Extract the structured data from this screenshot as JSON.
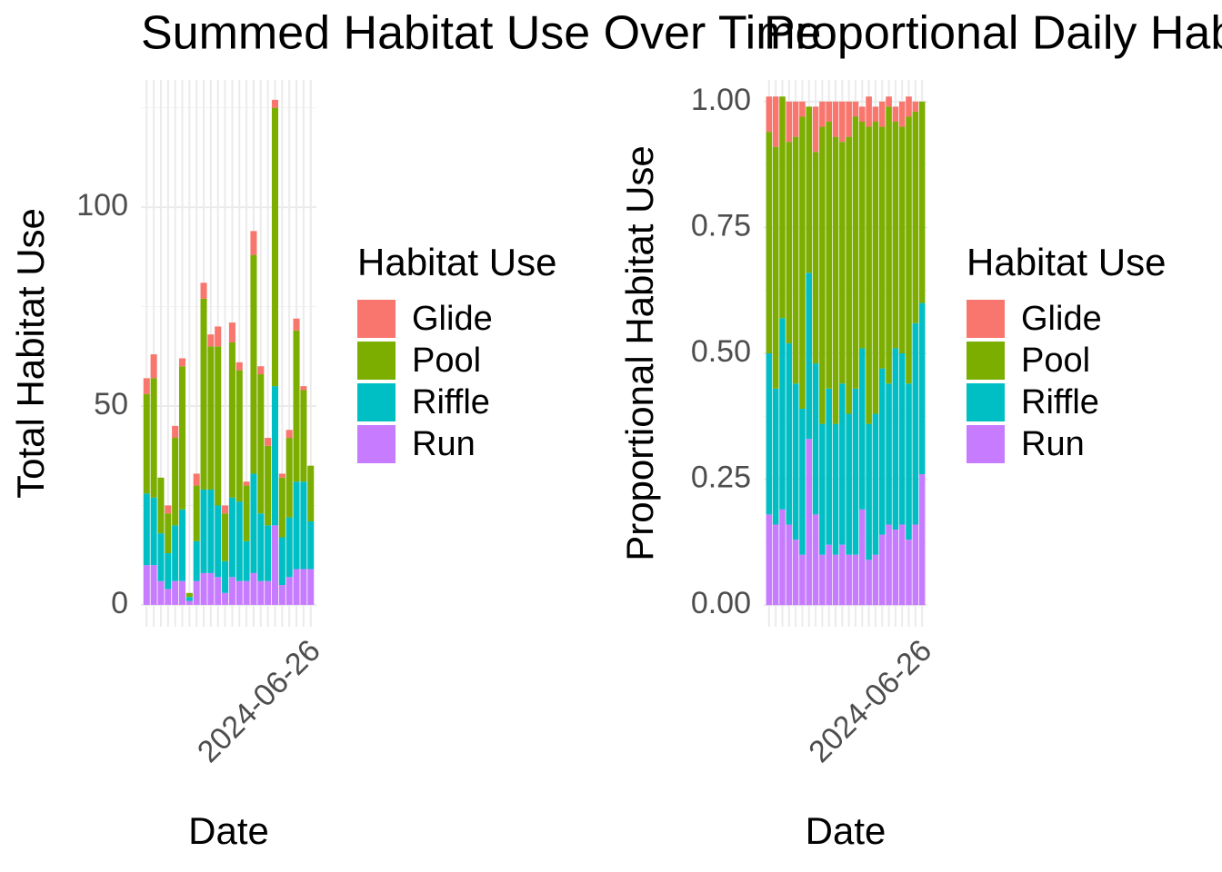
{
  "chart_data": [
    {
      "type": "stacked_bar",
      "title": "Summed Habitat Use Over Time",
      "x_label": "Date",
      "y_label": "Total Habitat Use",
      "legend_title": "Habitat Use",
      "categories": [
        null,
        null,
        null,
        null,
        null,
        null,
        null,
        null,
        null,
        null,
        null,
        null,
        null,
        null,
        null,
        null,
        null,
        null,
        null,
        null,
        null,
        null,
        null,
        "2024-06-26"
      ],
      "series": [
        {
          "name": "Glide",
          "color": "#F8766D",
          "values": [
            4,
            6,
            0,
            2,
            3,
            2,
            0,
            3,
            4,
            3,
            5,
            2,
            5,
            2,
            1,
            6,
            2,
            2,
            2,
            1,
            2,
            3,
            1,
            0
          ]
        },
        {
          "name": "Pool",
          "color": "#7CAE00",
          "values": [
            25,
            30,
            14,
            10,
            22,
            36,
            1,
            14,
            48,
            36,
            40,
            12,
            39,
            33,
            14,
            55,
            35,
            20,
            70,
            15,
            20,
            38,
            23,
            14
          ]
        },
        {
          "name": "Riffle",
          "color": "#00BFC4",
          "values": [
            18,
            17,
            12,
            9,
            14,
            18,
            1,
            10,
            21,
            21,
            18,
            8,
            20,
            20,
            10,
            25,
            17,
            14,
            35,
            12,
            15,
            22,
            22,
            12
          ]
        },
        {
          "name": "Run",
          "color": "#C77CFF",
          "values": [
            10,
            10,
            6,
            4,
            6,
            6,
            1,
            6,
            8,
            8,
            7,
            3,
            7,
            6,
            6,
            8,
            6,
            6,
            20,
            5,
            7,
            9,
            9,
            9
          ]
        }
      ],
      "ylim": [
        -5.5,
        132
      ],
      "yticks": [
        0,
        50,
        100
      ],
      "minor_yticks": [
        25,
        75,
        125
      ],
      "grid": true
    },
    {
      "type": "stacked_bar",
      "title": "Proportional Daily Habitat Use",
      "x_label": "Date",
      "y_label": "Proportional Habitat Use",
      "legend_title": "Habitat Use",
      "categories": [
        null,
        null,
        null,
        null,
        null,
        null,
        null,
        null,
        null,
        null,
        null,
        null,
        null,
        null,
        null,
        null,
        null,
        null,
        null,
        null,
        null,
        null,
        null,
        "2024-06-26"
      ],
      "series": [
        {
          "name": "Glide",
          "color": "#F8766D",
          "values": [
            0.07,
            0.1,
            0,
            0.08,
            0.07,
            0.03,
            0,
            0.09,
            0.05,
            0.04,
            0.07,
            0.08,
            0.07,
            0.03,
            0.03,
            0.06,
            0.03,
            0.05,
            0.02,
            0.03,
            0.05,
            0.04,
            0.02,
            0
          ]
        },
        {
          "name": "Pool",
          "color": "#7CAE00",
          "values": [
            0.44,
            0.48,
            0.44,
            0.4,
            0.49,
            0.58,
            0.33,
            0.42,
            0.59,
            0.53,
            0.57,
            0.48,
            0.55,
            0.54,
            0.45,
            0.59,
            0.58,
            0.48,
            0.55,
            0.45,
            0.45,
            0.53,
            0.42,
            0.4
          ]
        },
        {
          "name": "Riffle",
          "color": "#00BFC4",
          "values": [
            0.32,
            0.27,
            0.38,
            0.36,
            0.31,
            0.29,
            0.33,
            0.3,
            0.26,
            0.31,
            0.26,
            0.32,
            0.28,
            0.33,
            0.32,
            0.27,
            0.28,
            0.33,
            0.28,
            0.36,
            0.34,
            0.31,
            0.4,
            0.34
          ]
        },
        {
          "name": "Run",
          "color": "#C77CFF",
          "values": [
            0.18,
            0.16,
            0.19,
            0.16,
            0.13,
            0.1,
            0.33,
            0.18,
            0.1,
            0.12,
            0.1,
            0.12,
            0.1,
            0.1,
            0.19,
            0.09,
            0.1,
            0.14,
            0.16,
            0.15,
            0.16,
            0.13,
            0.16,
            0.26
          ]
        }
      ],
      "ylim": [
        -0.043,
        1.043
      ],
      "yticks": [
        {
          "value": 0,
          "label": "0.00"
        },
        {
          "value": 0.25,
          "label": "0.25"
        },
        {
          "value": 0.5,
          "label": "0.50"
        },
        {
          "value": 0.75,
          "label": "0.75"
        },
        {
          "value": 1,
          "label": "1.00"
        }
      ],
      "minor_yticks": [
        0.125,
        0.375,
        0.625,
        0.875
      ],
      "grid": true
    }
  ]
}
